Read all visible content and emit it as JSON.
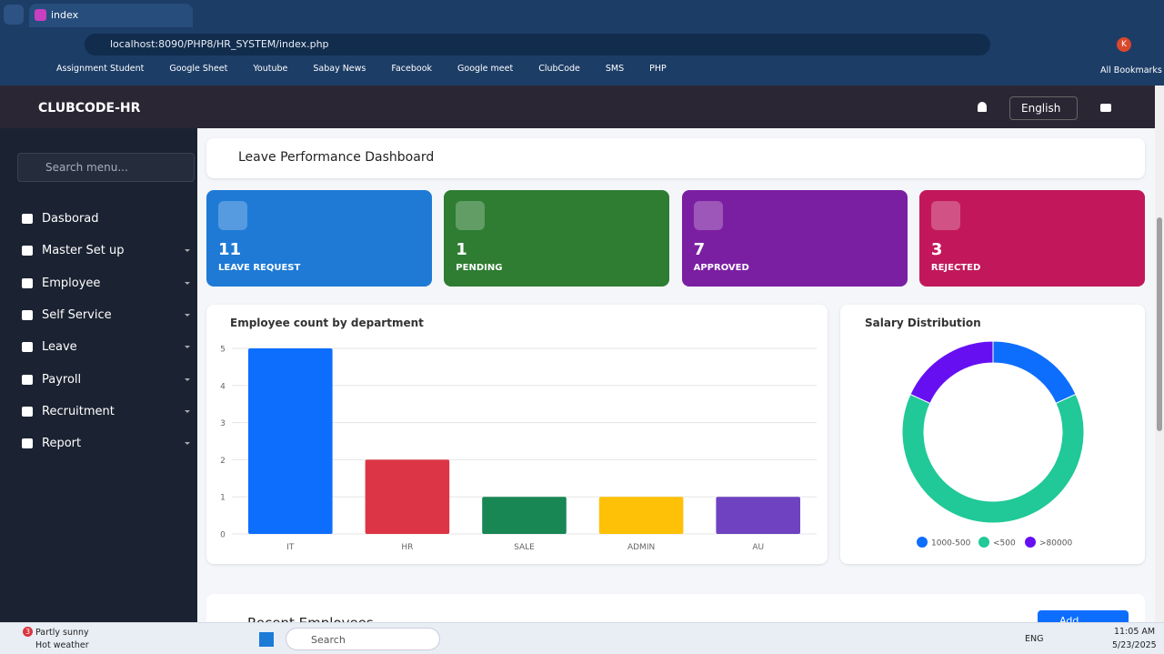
{
  "browser": {
    "tab_title": "index",
    "url": "localhost:8090/PHP8/HR_SYSTEM/index.php",
    "profile": "K",
    "bookmarks": [
      "Assignment Student",
      "Google Sheet",
      "Youtube",
      "Sabay News",
      "Facebook",
      "Google meet",
      "ClubCode",
      "SMS",
      "PHP"
    ],
    "all_bookmarks": "All Bookmarks"
  },
  "header": {
    "brand": "CLUBCODE-HR",
    "language": "English"
  },
  "sidebar": {
    "search_placeholder": "Search menu...",
    "menu": [
      "Dasborad",
      "Master Set up",
      "Employee",
      "Self Service",
      "Leave",
      "Payroll",
      "Recruitment",
      "Report"
    ]
  },
  "dashboard_title": "Leave Performance Dashboard",
  "cards": [
    {
      "value": "11",
      "label": "LEAVE REQUEST"
    },
    {
      "value": "1",
      "label": "PENDING"
    },
    {
      "value": "7",
      "label": "APPROVED"
    },
    {
      "value": "3",
      "label": "REJECTED"
    }
  ],
  "chart_data": [
    {
      "type": "bar",
      "title": "Employee count by department",
      "categories": [
        "IT",
        "HR",
        "SALE",
        "ADMIN",
        "AU"
      ],
      "values": [
        5,
        2,
        1,
        1,
        1
      ],
      "colors": [
        "#0d6efd",
        "#dc3545",
        "#198754",
        "#ffc107",
        "#6f42c1"
      ],
      "ylim": [
        0,
        5
      ],
      "yticks": [
        0,
        1,
        2,
        3,
        4,
        5
      ],
      "grid": true
    },
    {
      "type": "pie",
      "title": "Salary Distribution",
      "categories": [
        "1000-500",
        "<500",
        ">80000"
      ],
      "values": [
        2,
        7,
        2
      ],
      "colors": [
        "#0d6efd",
        "#20c997",
        "#6610f2"
      ],
      "legend": "bottom"
    }
  ],
  "recent_employees": {
    "title": "Recent Employees",
    "button": "Add Employee"
  },
  "taskbar": {
    "weather_badge": "3",
    "weather": "Partly sunny",
    "weather_note": "Hot weather",
    "search": "Search",
    "lang": "ENG",
    "time": "11:05 AM",
    "date": "5/23/2025"
  }
}
